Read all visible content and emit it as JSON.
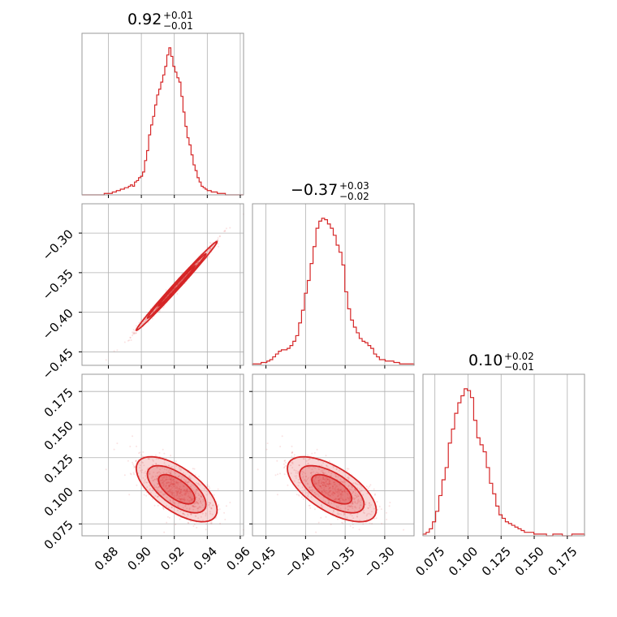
{
  "colors": {
    "series": "#d62728",
    "fill_light": "#f4b6b7",
    "fill_mid": "#ea8a8b",
    "grid": "#b0b0b0",
    "frame": "#999999"
  },
  "titles": {
    "p0": {
      "median": "0.92",
      "plus": "+0.01",
      "minus": "−0.01"
    },
    "p1": {
      "median": "−0.37",
      "plus": "+0.03",
      "minus": "−0.02"
    },
    "p2": {
      "median": "0.10",
      "plus": "+0.02",
      "minus": "−0.01"
    }
  },
  "chart_data": {
    "type": "corner",
    "grid": true,
    "parameters": [
      {
        "range": [
          0.864,
          0.962
        ],
        "ticks": [
          0.88,
          0.9,
          0.92,
          0.94,
          0.96
        ],
        "tick_labels": [
          "0.88",
          "0.90",
          "0.92",
          "0.94",
          "0.96"
        ]
      },
      {
        "range": [
          -0.467,
          -0.263
        ],
        "ticks": [
          -0.45,
          -0.4,
          -0.35,
          -0.3
        ],
        "tick_labels": [
          "−0.45",
          "−0.40",
          "−0.35",
          "−0.30"
        ]
      },
      {
        "range": [
          0.066,
          0.188
        ],
        "ticks": [
          0.075,
          0.1,
          0.125,
          0.15,
          0.175
        ],
        "tick_labels": [
          "0.075",
          "0.100",
          "0.125",
          "0.150",
          "0.175"
        ]
      }
    ],
    "histograms": [
      {
        "param": 0,
        "bin_edges": [
          0.864,
          0.962
        ],
        "counts": [
          0,
          0,
          0,
          0,
          0,
          0,
          0,
          0,
          0,
          0,
          0,
          1,
          1,
          1,
          1,
          2,
          2,
          3,
          3,
          4,
          4,
          5,
          5,
          6,
          7,
          6,
          9,
          10,
          12,
          13,
          16,
          24,
          31,
          42,
          49,
          55,
          63,
          70,
          74,
          79,
          84,
          90,
          98,
          103,
          97,
          90,
          86,
          82,
          79,
          69,
          58,
          48,
          40,
          35,
          28,
          21,
          17,
          12,
          9,
          6,
          5,
          4,
          3,
          3,
          2,
          2,
          2,
          1,
          1,
          1,
          1,
          0,
          0,
          0,
          0,
          0,
          0,
          0,
          0,
          0
        ]
      },
      {
        "param": 1,
        "bin_edges": [
          -0.467,
          -0.263
        ],
        "counts": [
          1,
          1,
          1,
          2,
          2,
          3,
          4,
          6,
          8,
          10,
          11,
          11,
          12,
          14,
          17,
          21,
          30,
          39,
          51,
          60,
          72,
          84,
          97,
          102,
          104,
          103,
          100,
          97,
          92,
          85,
          80,
          71,
          52,
          40,
          32,
          27,
          23,
          19,
          17,
          16,
          14,
          12,
          8,
          6,
          4,
          4,
          3,
          3,
          3,
          2,
          2,
          1,
          1,
          1,
          1,
          1
        ]
      },
      {
        "param": 2,
        "bin_edges": [
          0.066,
          0.188
        ],
        "counts": [
          1,
          2,
          4,
          8,
          14,
          23,
          32,
          39,
          53,
          61,
          70,
          76,
          80,
          84,
          83,
          79,
          66,
          56,
          52,
          48,
          39,
          30,
          24,
          17,
          12,
          10,
          8,
          7,
          6,
          5,
          4,
          3,
          2,
          2,
          2,
          1,
          1,
          1,
          1,
          0,
          0,
          1,
          1,
          1,
          0,
          0,
          0,
          1,
          1,
          1,
          1
        ]
      }
    ],
    "correlations": [
      {
        "pair": [
          0,
          1
        ],
        "direction": "positive",
        "strength": "strong"
      },
      {
        "pair": [
          0,
          2
        ],
        "direction": "negative",
        "strength": "moderate"
      },
      {
        "pair": [
          1,
          2
        ],
        "direction": "negative",
        "strength": "moderate"
      }
    ]
  }
}
